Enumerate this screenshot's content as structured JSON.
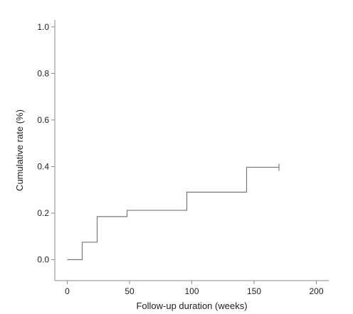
{
  "chart_data": {
    "type": "line",
    "step": true,
    "xlabel": "Follow-up duration (weeks)",
    "ylabel": "Cumulative rate (%)",
    "xlim": [
      -10,
      210
    ],
    "ylim": [
      -0.09,
      1.03
    ],
    "x_ticks": [
      0,
      50,
      100,
      150,
      200
    ],
    "y_ticks": [
      0.0,
      0.2,
      0.4,
      0.6,
      0.8,
      1.0
    ],
    "x_tick_labels": [
      "0",
      "50",
      "100",
      "150",
      "200"
    ],
    "y_tick_labels": [
      "0.0",
      "0.2",
      "0.4",
      "0.6",
      "0.8",
      "1.0"
    ],
    "grid": false,
    "series": [
      {
        "x": [
          0,
          12,
          24,
          48,
          96,
          144,
          170
        ],
        "y": [
          0.0,
          0.075,
          0.185,
          0.212,
          0.29,
          0.397,
          0.397
        ],
        "censored": [
          {
            "x": 170,
            "y": 0.397
          }
        ]
      }
    ]
  }
}
